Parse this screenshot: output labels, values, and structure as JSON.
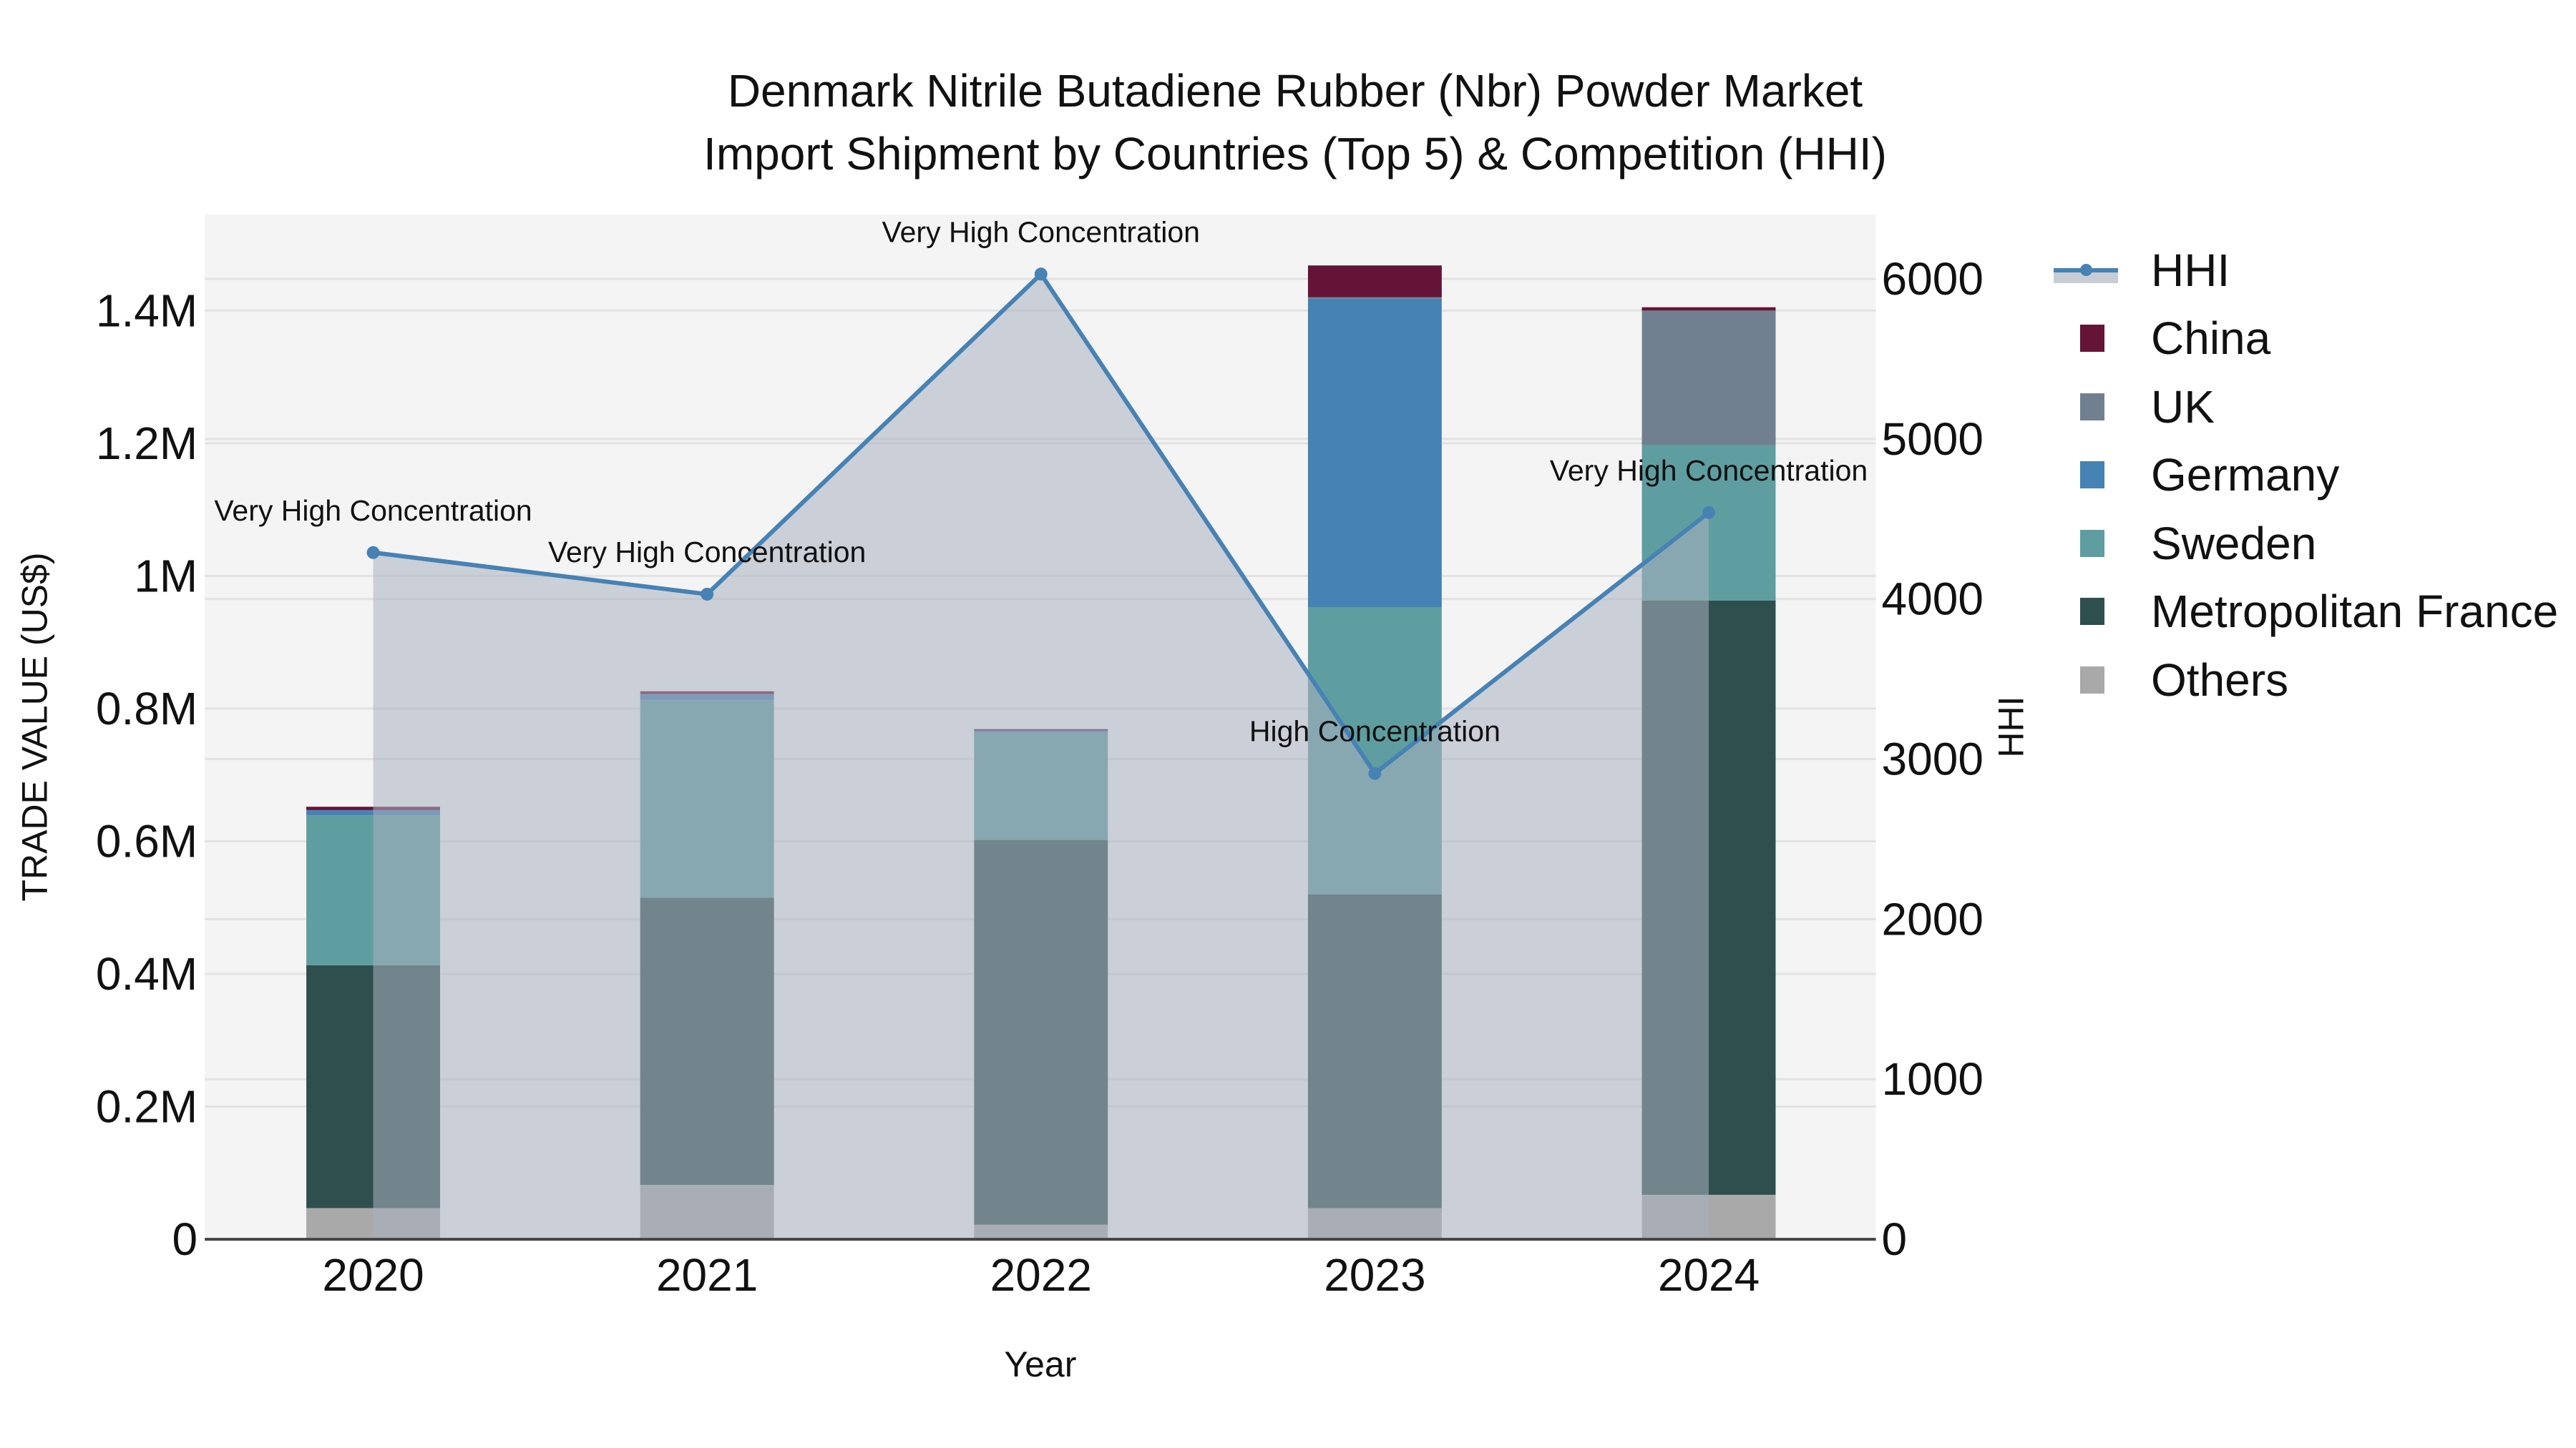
{
  "title": {
    "line1": "Denmark Nitrile Butadiene Rubber (Nbr) Powder Market",
    "line2": "Import Shipment by Countries (Top 5) & Competition (HHI)"
  },
  "axes": {
    "x_label": "Year",
    "y_left_label": "TRADE VALUE (US$)",
    "y_right_label": "HHI",
    "y_left_ticks": [
      "0",
      "0.2M",
      "0.4M",
      "0.6M",
      "0.8M",
      "1M",
      "1.2M",
      "1.4M"
    ],
    "y_right_ticks": [
      "0",
      "1000",
      "2000",
      "3000",
      "4000",
      "5000",
      "6000"
    ]
  },
  "legend": [
    {
      "name": "HHI",
      "type": "line",
      "color": "#4682b4"
    },
    {
      "name": "China",
      "type": "bar",
      "color": "#641436"
    },
    {
      "name": "UK",
      "type": "bar",
      "color": "#708090"
    },
    {
      "name": "Germany",
      "type": "bar",
      "color": "#4682b4"
    },
    {
      "name": "Sweden",
      "type": "bar",
      "color": "#5f9ea0"
    },
    {
      "name": "Metropolitan France",
      "type": "bar",
      "color": "#2f4f4f"
    },
    {
      "name": "Others",
      "type": "bar",
      "color": "#a9a9a9"
    }
  ],
  "colors": {
    "plot_bg": "#f4f4f4",
    "hhi_fill": "#c8cdd5",
    "hhi_line": "#4682b4",
    "grid": "#e2e2e2"
  },
  "chart_data": {
    "type": "bar",
    "stacked": true,
    "title": "Denmark Nitrile Butadiene Rubber (Nbr) Powder Market Import Shipment by Countries (Top 5) & Competition (HHI)",
    "xlabel": "Year",
    "ylabel": "TRADE VALUE (US$)",
    "y2label": "HHI",
    "ylim": [
      0,
      1540000
    ],
    "y2lim": [
      0,
      6350
    ],
    "categories": [
      "2020",
      "2021",
      "2022",
      "2023",
      "2024"
    ],
    "series": [
      {
        "name": "Others",
        "color": "#a9a9a9",
        "values": [
          47000,
          82000,
          22000,
          47000,
          67000
        ]
      },
      {
        "name": "Metropolitan France",
        "color": "#2f4f4f",
        "values": [
          366000,
          433000,
          580000,
          473000,
          896000
        ]
      },
      {
        "name": "Sweden",
        "color": "#5f9ea0",
        "values": [
          226000,
          298000,
          162000,
          433000,
          234000
        ]
      },
      {
        "name": "Germany",
        "color": "#4682b4",
        "values": [
          8000,
          8000,
          3000,
          465000,
          0
        ]
      },
      {
        "name": "UK",
        "color": "#708090",
        "values": [
          0,
          1000,
          0,
          2000,
          203000
        ]
      },
      {
        "name": "China",
        "color": "#641436",
        "values": [
          5000,
          4000,
          2000,
          48000,
          5000
        ]
      }
    ],
    "line_series": {
      "name": "HHI",
      "axis": "right",
      "color": "#4682b4",
      "fill": "tozeroy",
      "values": [
        4290,
        4030,
        6030,
        2910,
        4540
      ]
    },
    "annotations": [
      {
        "x": "2020",
        "text": "Very High Concentration"
      },
      {
        "x": "2021",
        "text": "Very High Concentration"
      },
      {
        "x": "2022",
        "text": "Very High Concentration"
      },
      {
        "x": "2023",
        "text": "High Concentration"
      },
      {
        "x": "2024",
        "text": "Very High Concentration"
      }
    ],
    "grid": true,
    "legend_position": "right"
  }
}
